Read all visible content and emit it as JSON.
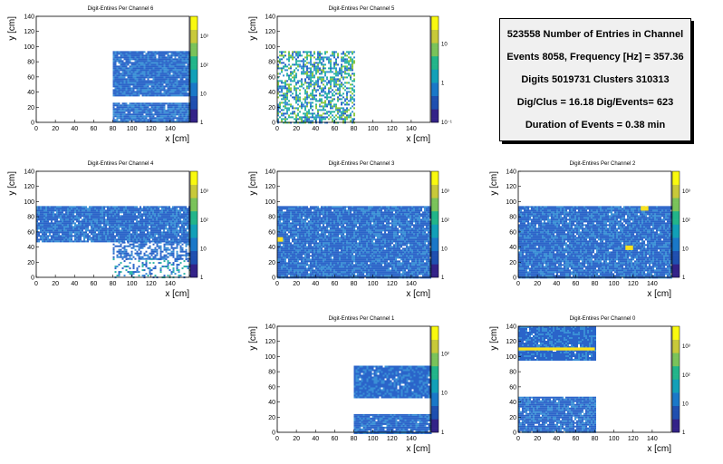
{
  "info": {
    "lines": [
      "523558 Number of Entries in Channel",
      "Events 8058, Frequency [Hz] = 357.36",
      "Digits 5019731 Clusters 310313",
      "Dig/Clus = 16.18 Dig/Events= 623",
      "Duration of Events = 0.38 min"
    ]
  },
  "colors": {
    "cell_blue": "#2a64c9",
    "cell_blue_light": "#3a8fd6",
    "cell_teal": "#2bb3a6",
    "cell_green": "#8cc63f",
    "cell_yellow": "#f9e21f",
    "palette_bottom": "#332288",
    "palette_top": "#f9f90f"
  },
  "chart_data": [
    {
      "type": "heatmap",
      "title": "Digit-Entires Per Channel 6",
      "xlabel": "x [cm]",
      "ylabel": "y [cm]",
      "xlim": [
        0,
        160
      ],
      "ylim": [
        0,
        140
      ],
      "xticks": [
        "0",
        "20",
        "40",
        "60",
        "80",
        "100",
        "120",
        "140"
      ],
      "yticks": [
        "0",
        "20",
        "40",
        "60",
        "80",
        "100",
        "120",
        "140"
      ],
      "zticks": [
        "1",
        "10",
        "10²",
        "10³"
      ],
      "zscale": "log",
      "regions": [
        {
          "x": [
            80,
            160
          ],
          "y": [
            36,
            94
          ],
          "level": "high",
          "density": 0.96
        },
        {
          "x": [
            80,
            160
          ],
          "y": [
            0,
            26
          ],
          "level": "high",
          "density": 0.96
        }
      ],
      "hotspots": []
    },
    {
      "type": "heatmap",
      "title": "Digit-Entires Per Channel 5",
      "xlabel": "x [cm]",
      "ylabel": "y [cm]",
      "xlim": [
        0,
        160
      ],
      "ylim": [
        0,
        140
      ],
      "xticks": [
        "0",
        "20",
        "40",
        "60",
        "80",
        "100",
        "120",
        "140"
      ],
      "yticks": [
        "0",
        "20",
        "40",
        "60",
        "80",
        "100",
        "120",
        "140"
      ],
      "zticks": [
        "10⁻¹",
        "1",
        "10"
      ],
      "zscale": "log",
      "regions": [
        {
          "x": [
            0,
            80
          ],
          "y": [
            0,
            94
          ],
          "level": "sparse",
          "density": 0.55
        }
      ],
      "hotspots": []
    },
    {
      "type": "heatmap",
      "title": "Digit-Entires Per Channel 4",
      "xlabel": "x [cm]",
      "ylabel": "y [cm]",
      "xlim": [
        0,
        160
      ],
      "ylim": [
        0,
        140
      ],
      "xticks": [
        "0",
        "20",
        "40",
        "60",
        "80",
        "100",
        "120",
        "140"
      ],
      "yticks": [
        "0",
        "20",
        "40",
        "60",
        "80",
        "100",
        "120",
        "140"
      ],
      "zticks": [
        "1",
        "10",
        "10²",
        "10³"
      ],
      "zscale": "log",
      "regions": [
        {
          "x": [
            0,
            160
          ],
          "y": [
            47,
            94
          ],
          "level": "high",
          "density": 0.96
        },
        {
          "x": [
            80,
            160
          ],
          "y": [
            25,
            47
          ],
          "level": "high",
          "density": 0.6
        },
        {
          "x": [
            80,
            160
          ],
          "y": [
            0,
            25
          ],
          "level": "mid",
          "density": 0.3
        }
      ],
      "hotspots": []
    },
    {
      "type": "heatmap",
      "title": "Digit-Entires Per Channel 3",
      "xlabel": "x [cm]",
      "ylabel": "y [cm]",
      "xlim": [
        0,
        160
      ],
      "ylim": [
        0,
        140
      ],
      "xticks": [
        "0",
        "20",
        "40",
        "60",
        "80",
        "100",
        "120",
        "140"
      ],
      "yticks": [
        "0",
        "20",
        "40",
        "60",
        "80",
        "100",
        "120",
        "140"
      ],
      "zticks": [
        "1",
        "10",
        "10²",
        "10³"
      ],
      "zscale": "log",
      "regions": [
        {
          "x": [
            0,
            160
          ],
          "y": [
            0,
            94
          ],
          "level": "high",
          "density": 0.97
        }
      ],
      "hotspots": [
        {
          "x": [
            0,
            6
          ],
          "y": [
            47,
            53
          ]
        }
      ]
    },
    {
      "type": "heatmap",
      "title": "Digit-Entires Per Channel 2",
      "xlabel": "x [cm]",
      "ylabel": "y [cm]",
      "xlim": [
        0,
        160
      ],
      "ylim": [
        0,
        140
      ],
      "xticks": [
        "0",
        "20",
        "40",
        "60",
        "80",
        "100",
        "120",
        "140"
      ],
      "yticks": [
        "0",
        "20",
        "40",
        "60",
        "80",
        "100",
        "120",
        "140"
      ],
      "zticks": [
        "1",
        "10",
        "10²",
        "10³"
      ],
      "zscale": "log",
      "regions": [
        {
          "x": [
            0,
            160
          ],
          "y": [
            0,
            94
          ],
          "level": "high",
          "density": 0.97
        }
      ],
      "hotspots": [
        {
          "x": [
            128,
            136
          ],
          "y": [
            88,
            94
          ]
        },
        {
          "x": [
            112,
            120
          ],
          "y": [
            36,
            42
          ]
        }
      ]
    },
    {
      "type": "heatmap",
      "title": "Digit-Entires Per Channel 1",
      "xlabel": "x [cm]",
      "ylabel": "y [cm]",
      "xlim": [
        0,
        160
      ],
      "ylim": [
        0,
        140
      ],
      "xticks": [
        "0",
        "20",
        "40",
        "60",
        "80",
        "100",
        "120",
        "140"
      ],
      "yticks": [
        "0",
        "20",
        "40",
        "60",
        "80",
        "100",
        "120",
        "140"
      ],
      "zticks": [
        "1",
        "10",
        "10²"
      ],
      "zscale": "log",
      "regions": [
        {
          "x": [
            80,
            160
          ],
          "y": [
            47,
            88
          ],
          "level": "high",
          "density": 0.97
        },
        {
          "x": [
            80,
            160
          ],
          "y": [
            0,
            24
          ],
          "level": "high",
          "density": 0.97
        }
      ],
      "hotspots": []
    },
    {
      "type": "heatmap",
      "title": "Digit-Entires Per Channel 0",
      "xlabel": "x [cm]",
      "ylabel": "y [cm]",
      "xlim": [
        0,
        160
      ],
      "ylim": [
        0,
        140
      ],
      "xticks": [
        "0",
        "20",
        "40",
        "60",
        "80",
        "100",
        "120",
        "140"
      ],
      "yticks": [
        "0",
        "20",
        "40",
        "60",
        "80",
        "100",
        "120",
        "140"
      ],
      "zticks": [
        "1",
        "10",
        "10²",
        "10³"
      ],
      "zscale": "log",
      "regions": [
        {
          "x": [
            0,
            80
          ],
          "y": [
            95,
            141
          ],
          "level": "high",
          "density": 0.97
        },
        {
          "x": [
            0,
            80
          ],
          "y": [
            0,
            47
          ],
          "level": "high",
          "density": 0.97
        }
      ],
      "hotspots": [
        {
          "x": [
            0,
            80
          ],
          "y": [
            108,
            112
          ]
        }
      ]
    }
  ]
}
